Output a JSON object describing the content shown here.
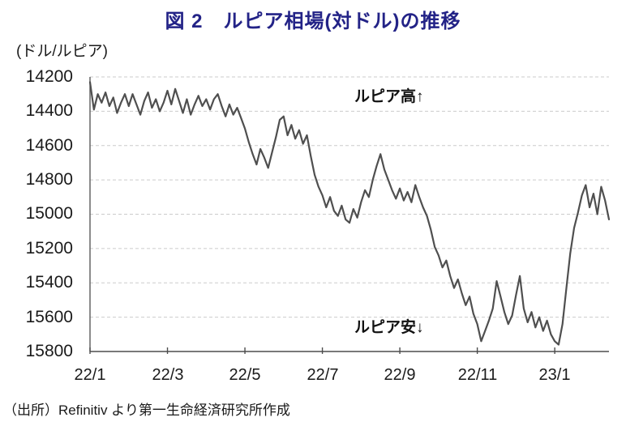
{
  "chart_data": {
    "type": "line",
    "title": "図 2　ルピア相場(対ドル)の推移",
    "unit_label": "(ドル/ルピア)",
    "x_tick_labels": [
      "22/1",
      "22/3",
      "22/5",
      "22/7",
      "22/9",
      "22/11",
      "23/1"
    ],
    "y_tick_labels": [
      "14200",
      "14400",
      "14600",
      "14800",
      "15000",
      "15200",
      "15400",
      "15600",
      "15800"
    ],
    "axis": {
      "y_min": 14200,
      "y_max": 15800,
      "y_axis_inverted": true,
      "x_range": "2022/01 - 2023/02",
      "grid": "dashed horizontal"
    },
    "annotations": {
      "high": "ルピア高↑",
      "low": "ルピア安↓"
    },
    "source": "（出所）Refinitiv より第一生命経済研究所作成",
    "legend": "none",
    "series": [
      {
        "name": "ルピア相場（対ドル）",
        "unit": "ルピア/ドル",
        "values": [
          14230,
          14390,
          14300,
          14350,
          14290,
          14370,
          14320,
          14410,
          14350,
          14300,
          14370,
          14300,
          14360,
          14420,
          14340,
          14290,
          14380,
          14330,
          14400,
          14350,
          14280,
          14360,
          14270,
          14340,
          14410,
          14330,
          14420,
          14360,
          14310,
          14370,
          14330,
          14390,
          14330,
          14300,
          14370,
          14430,
          14360,
          14420,
          14380,
          14440,
          14500,
          14580,
          14650,
          14710,
          14620,
          14670,
          14730,
          14640,
          14550,
          14450,
          14430,
          14540,
          14480,
          14560,
          14510,
          14590,
          14540,
          14660,
          14770,
          14840,
          14890,
          14960,
          14900,
          14980,
          15010,
          14950,
          15030,
          15050,
          14970,
          15020,
          14930,
          14860,
          14900,
          14800,
          14720,
          14650,
          14740,
          14800,
          14860,
          14910,
          14850,
          14920,
          14870,
          14930,
          14830,
          14900,
          14960,
          15010,
          15090,
          15190,
          15240,
          15310,
          15270,
          15360,
          15430,
          15380,
          15460,
          15530,
          15480,
          15580,
          15640,
          15740,
          15680,
          15620,
          15550,
          15390,
          15480,
          15570,
          15640,
          15590,
          15470,
          15360,
          15550,
          15630,
          15570,
          15660,
          15600,
          15680,
          15620,
          15700,
          15740,
          15760,
          15640,
          15430,
          15230,
          15080,
          14990,
          14890,
          14830,
          14960,
          14880,
          15000,
          14840,
          14920,
          15030
        ]
      }
    ],
    "colors": {
      "title": "#232387",
      "line": "#4f4f4f",
      "grid": "#cbcbcb",
      "axis": "#5a5a5a",
      "text": "#1a1a1a"
    }
  }
}
